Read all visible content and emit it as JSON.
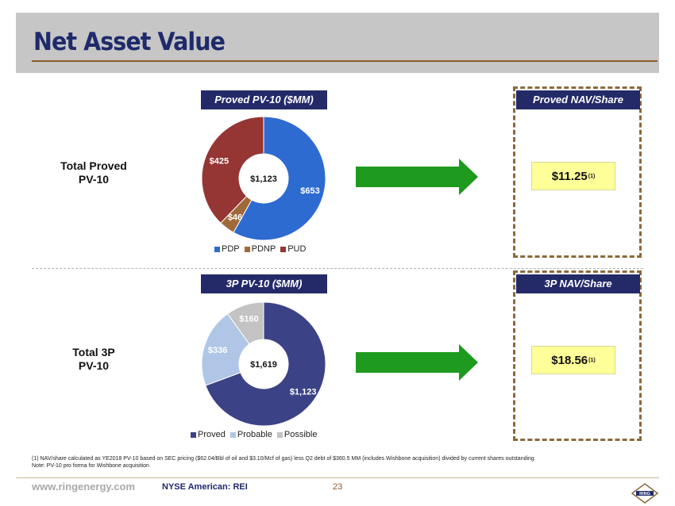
{
  "title": "Net Asset Value",
  "rows": [
    {
      "label_line1": "Total Proved",
      "label_line2": "PV-10",
      "header": "Proved PV-10 ($MM)",
      "nav_header": "Proved NAV/Share",
      "nav_value": "$11.25",
      "nav_sup": "(1)",
      "center_label": "$1,123"
    },
    {
      "label_line1": "Total 3P",
      "label_line2": "PV-10",
      "header": "3P PV-10 ($MM)",
      "nav_header": "3P NAV/Share",
      "nav_value": "$18.56",
      "nav_sup": "(1)",
      "center_label": "$1,619"
    }
  ],
  "chart_data": [
    {
      "type": "pie",
      "title": "Proved PV-10 ($MM)",
      "categories": [
        "PDP",
        "PDNP",
        "PUD"
      ],
      "values": [
        653,
        46,
        425
      ],
      "labels": [
        "$653",
        "$46",
        "$425"
      ],
      "colors": [
        "#2e6bd0",
        "#a0693a",
        "#953634"
      ],
      "center_label": "$1,123",
      "legend": "bottom"
    },
    {
      "type": "pie",
      "title": "3P PV-10 ($MM)",
      "categories": [
        "Proved",
        "Probable",
        "Possible"
      ],
      "values": [
        1123,
        336,
        160
      ],
      "labels": [
        "$1,123",
        "$336",
        "$160"
      ],
      "colors": [
        "#3b4285",
        "#afc6e6",
        "#c3c3c3"
      ],
      "center_label": "$1,619",
      "legend": "bottom"
    }
  ],
  "footnote_line1": "(1) NAV/share calculated as YE2018 PV-10 based on SEC pricing ($62.04/Bbl of oil and $3.10/Mcf of gas) less Q2 debt of $360.5 MM (includes Wishbone acquisition) divided by current shares outstanding",
  "footnote_line2": "Note: PV-10 pro forma for Wishbone acquisition",
  "footer": {
    "url": "www.ringenergy.com",
    "ticker": "NYSE American: REI",
    "page": "23",
    "logo_text": "RING"
  },
  "colors": {
    "header_bg": "#242a68",
    "title": "#1f2a6b",
    "accent_brown": "#8b5a2b",
    "arrow_green": "#1e9a1e",
    "value_box": "#ffff99"
  }
}
